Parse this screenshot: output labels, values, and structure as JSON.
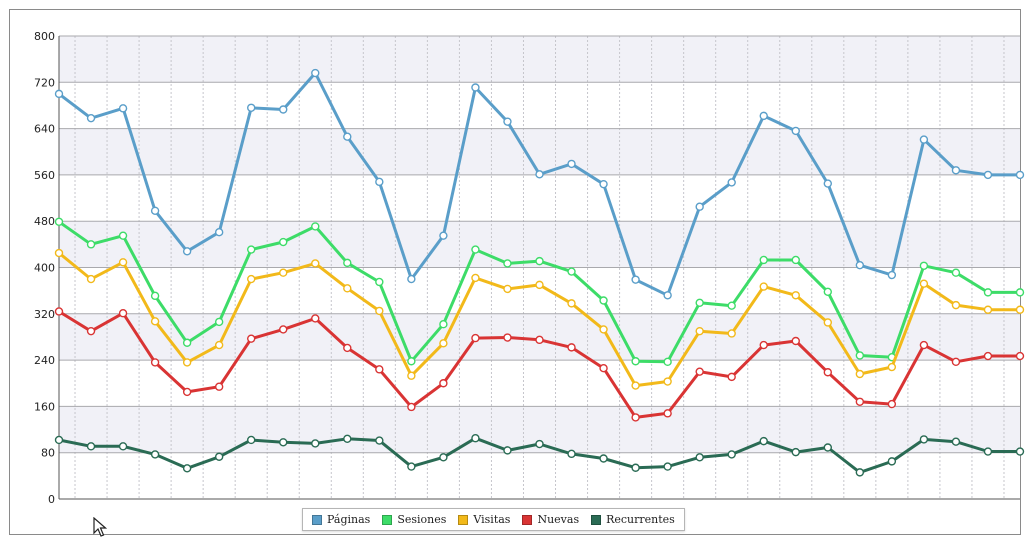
{
  "chart_data": {
    "type": "line",
    "x": [
      1,
      2,
      3,
      4,
      5,
      6,
      7,
      8,
      9,
      10,
      11,
      12,
      13,
      14,
      15,
      16,
      17,
      18,
      19,
      20,
      21,
      22,
      23,
      24,
      25,
      26,
      27,
      28,
      29,
      30,
      31
    ],
    "ylim": [
      0,
      800
    ],
    "yticks": [
      0,
      80,
      160,
      240,
      320,
      400,
      480,
      560,
      640,
      720,
      800
    ],
    "grid": true,
    "legend_placement": "bottom-center",
    "series": [
      {
        "name": "Páginas",
        "color": "#5a9ec9",
        "values": [
          700,
          658,
          675,
          498,
          428,
          461,
          676,
          673,
          736,
          626,
          548,
          380,
          455,
          711,
          652,
          561,
          579,
          544,
          379,
          352,
          505,
          547,
          662,
          636,
          545,
          404,
          387,
          621,
          568,
          560,
          560
        ]
      },
      {
        "name": "Sesiones",
        "color": "#3ddc68",
        "values": [
          479,
          440,
          455,
          351,
          270,
          306,
          431,
          444,
          471,
          408,
          375,
          238,
          302,
          431,
          407,
          411,
          393,
          343,
          238,
          237,
          339,
          334,
          413,
          413,
          358,
          248,
          245,
          403,
          391,
          357,
          357
        ]
      },
      {
        "name": "Visitas",
        "color": "#f2b91a",
        "values": [
          425,
          380,
          409,
          307,
          236,
          266,
          380,
          391,
          407,
          364,
          325,
          213,
          269,
          382,
          363,
          370,
          338,
          293,
          196,
          203,
          290,
          286,
          367,
          352,
          305,
          216,
          228,
          372,
          335,
          327,
          327
        ]
      },
      {
        "name": "Nuevas",
        "color": "#d93434",
        "values": [
          324,
          290,
          321,
          236,
          185,
          194,
          277,
          293,
          312,
          261,
          224,
          159,
          200,
          278,
          279,
          275,
          262,
          226,
          141,
          148,
          220,
          211,
          266,
          273,
          219,
          168,
          164,
          266,
          237,
          247,
          247
        ]
      },
      {
        "name": "Recurrentes",
        "color": "#2a6b54",
        "values": [
          102,
          91,
          91,
          77,
          53,
          73,
          102,
          98,
          96,
          104,
          101,
          56,
          72,
          105,
          84,
          95,
          78,
          70,
          54,
          56,
          72,
          77,
          100,
          81,
          89,
          46,
          65,
          103,
          99,
          82,
          82
        ]
      }
    ]
  }
}
